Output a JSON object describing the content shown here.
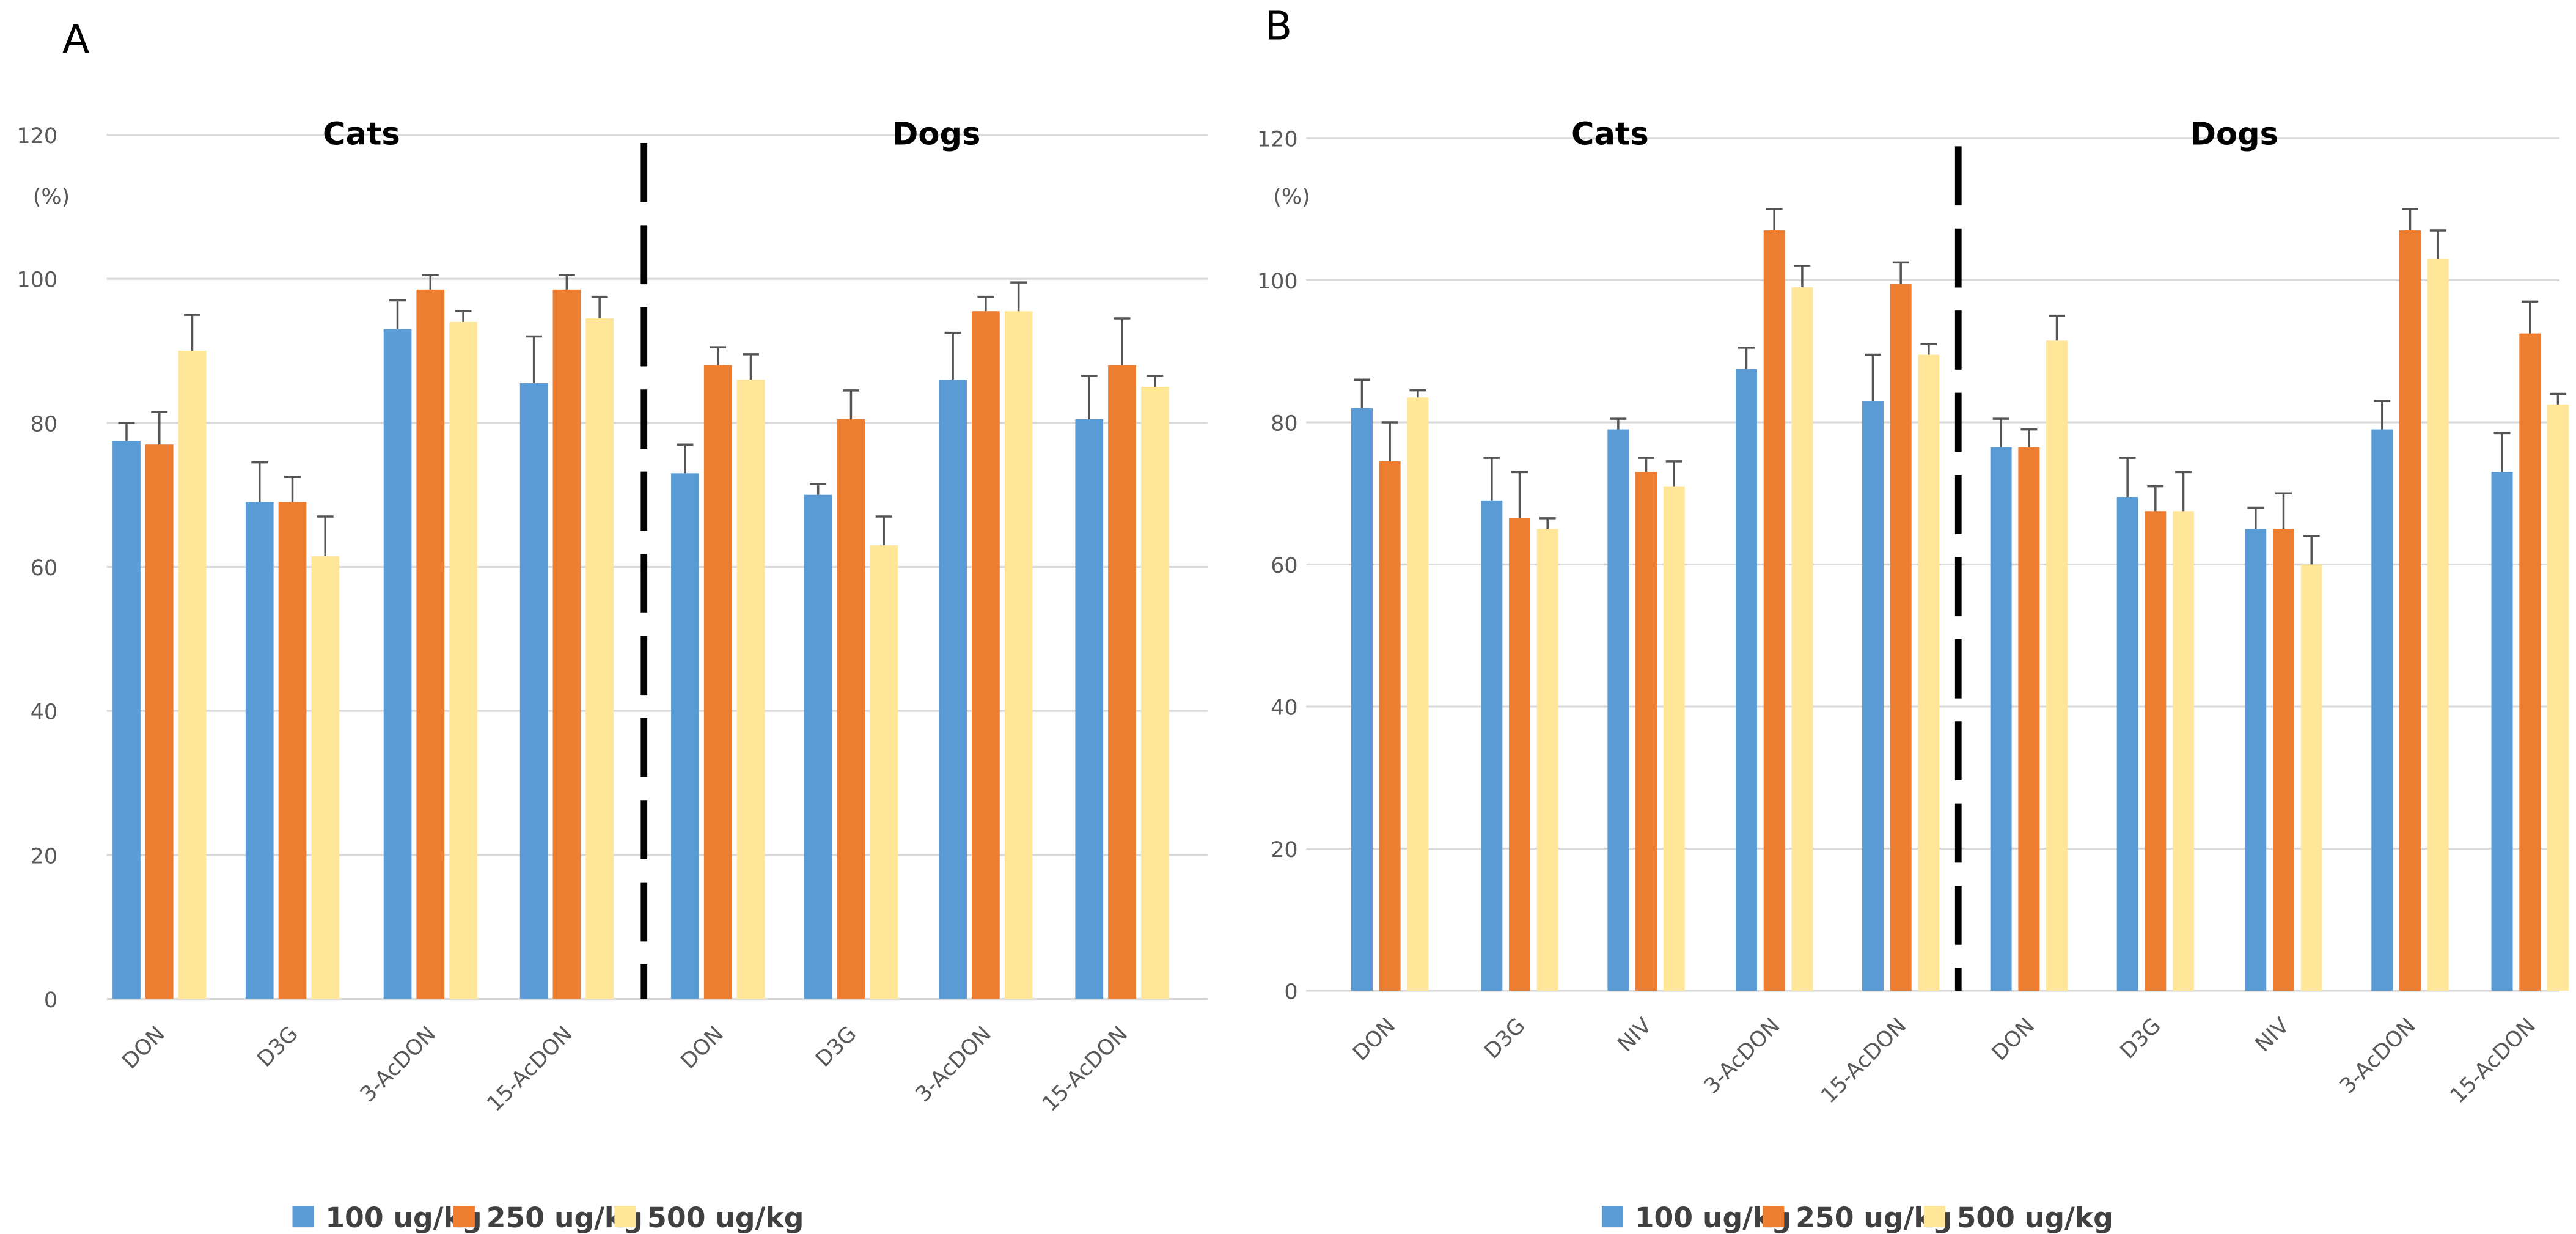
{
  "chart_data": [
    {
      "type": "bar",
      "panel_label": "A",
      "ylabel": "(%)",
      "ylim": [
        0,
        120
      ],
      "yticks": [
        0,
        20,
        40,
        60,
        80,
        100,
        120
      ],
      "grid": true,
      "legend_placement": "bottom",
      "groups": [
        {
          "name": "Cats",
          "categories": [
            "DON",
            "D3G",
            "3-AcDON",
            "15-AcDON"
          ]
        },
        {
          "name": "Dogs",
          "categories": [
            "DON",
            "D3G",
            "3-AcDON",
            "15-AcDON"
          ]
        }
      ],
      "series": [
        {
          "name": "100 ug/kg",
          "color": "#5B9BD5",
          "values": [
            77.5,
            69,
            93,
            85.5,
            73,
            70,
            86,
            80.5
          ],
          "error_upper": [
            80,
            74.5,
            97,
            92,
            77,
            71.5,
            92.5,
            86.5
          ]
        },
        {
          "name": "250 ug/kg",
          "color": "#ED7D31",
          "values": [
            77,
            69,
            98.5,
            98.5,
            88,
            80.5,
            95.5,
            88
          ],
          "error_upper": [
            81.5,
            72.5,
            100.5,
            100.5,
            90.5,
            84.5,
            97.5,
            94.5
          ]
        },
        {
          "name": "500 ug/kg",
          "color": "#FFE699",
          "values": [
            90,
            61.5,
            94,
            94.5,
            86,
            63,
            95.5,
            85
          ],
          "error_upper": [
            95,
            67,
            95.5,
            97.5,
            89.5,
            67,
            99.5,
            86.5
          ]
        }
      ]
    },
    {
      "type": "bar",
      "panel_label": "B",
      "ylabel": "(%)",
      "ylim": [
        0,
        120
      ],
      "yticks": [
        0,
        20,
        40,
        60,
        80,
        100,
        120
      ],
      "grid": true,
      "legend_placement": "bottom",
      "groups": [
        {
          "name": "Cats",
          "categories": [
            "DON",
            "D3G",
            "NIV",
            "3-AcDON",
            "15-AcDON"
          ]
        },
        {
          "name": "Dogs",
          "categories": [
            "DON",
            "D3G",
            "NIV",
            "3-AcDON",
            "15-AcDON"
          ]
        }
      ],
      "series": [
        {
          "name": "100 ug/kg",
          "color": "#5B9BD5",
          "values": [
            82,
            69,
            79,
            87.5,
            83,
            76.5,
            69.5,
            65,
            79,
            73
          ],
          "error_upper": [
            86,
            75,
            80.5,
            90.5,
            89.5,
            80.5,
            75,
            68,
            83,
            78.5
          ]
        },
        {
          "name": "250 ug/kg",
          "color": "#ED7D31",
          "values": [
            74.5,
            66.5,
            73,
            107,
            99.5,
            76.5,
            67.5,
            65,
            107,
            92.5
          ],
          "error_upper": [
            80,
            73,
            75,
            110,
            102.5,
            79,
            71,
            70,
            110,
            97
          ]
        },
        {
          "name": "500 ug/kg",
          "color": "#FFE699",
          "values": [
            83.5,
            65,
            71,
            99,
            89.5,
            91.5,
            67.5,
            60,
            103,
            82.5
          ],
          "error_upper": [
            84.5,
            66.5,
            74.5,
            102,
            91,
            95,
            73,
            64,
            107,
            84
          ]
        }
      ]
    }
  ]
}
